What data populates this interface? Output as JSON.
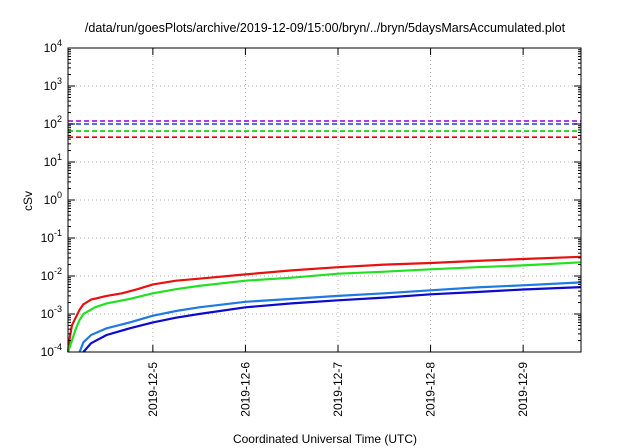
{
  "chart_data": {
    "type": "line",
    "title": "/data/run/goesPlots/archive/2019-12-09/15:00/bryn/../bryn/5daysMarsAccumulated.plot",
    "xlabel": "Coordinated Universal Time (UTC)",
    "ylabel": "cSv",
    "y_scale": "log",
    "ylim": [
      0.0001,
      10000
    ],
    "xlim": [
      "2019-12-04T02:00",
      "2019-12-09T15:00"
    ],
    "x_ticks": [
      "2019-12-5",
      "2019-12-6",
      "2019-12-7",
      "2019-12-8",
      "2019-12-9"
    ],
    "y_ticks": [
      {
        "base": "10",
        "exp": "-4"
      },
      {
        "base": "10",
        "exp": "-3"
      },
      {
        "base": "10",
        "exp": "-2"
      },
      {
        "base": "10",
        "exp": "-1"
      },
      {
        "base": "10",
        "exp": "0"
      },
      {
        "base": "10",
        "exp": "1"
      },
      {
        "base": "10",
        "exp": "2"
      },
      {
        "base": "10",
        "exp": "3"
      },
      {
        "base": "10",
        "exp": "4"
      }
    ],
    "grid": true,
    "thresholds": [
      {
        "value": 120,
        "color": "#9400d3"
      },
      {
        "value": 100,
        "color": "#1f3fd8"
      },
      {
        "value": 65,
        "color": "#00d000"
      },
      {
        "value": 45,
        "color": "#e00000"
      }
    ],
    "series": [
      {
        "color": "#e81010",
        "points": [
          [
            "2019-12-04T02:00",
            0.0001
          ],
          [
            "2019-12-04T02:30",
            0.00025
          ],
          [
            "2019-12-04T03:00",
            0.0005
          ],
          [
            "2019-12-04T04:00",
            0.0008
          ],
          [
            "2019-12-04T05:00",
            0.0013
          ],
          [
            "2019-12-04T06:00",
            0.0018
          ],
          [
            "2019-12-04T08:00",
            0.0024
          ],
          [
            "2019-12-04T12:00",
            0.003
          ],
          [
            "2019-12-04T16:00",
            0.0035
          ],
          [
            "2019-12-04T20:00",
            0.0045
          ],
          [
            "2019-12-05T00:00",
            0.006
          ],
          [
            "2019-12-05T06:00",
            0.0075
          ],
          [
            "2019-12-05T12:00",
            0.0085
          ],
          [
            "2019-12-06T00:00",
            0.011
          ],
          [
            "2019-12-06T12:00",
            0.014
          ],
          [
            "2019-12-07T00:00",
            0.017
          ],
          [
            "2019-12-07T12:00",
            0.02
          ],
          [
            "2019-12-08T00:00",
            0.022
          ],
          [
            "2019-12-08T12:00",
            0.025
          ],
          [
            "2019-12-09T00:00",
            0.028
          ],
          [
            "2019-12-09T15:00",
            0.032
          ]
        ]
      },
      {
        "color": "#22e022",
        "points": [
          [
            "2019-12-04T02:00",
            0.0001
          ],
          [
            "2019-12-04T03:00",
            0.0002
          ],
          [
            "2019-12-04T04:00",
            0.0004
          ],
          [
            "2019-12-04T05:00",
            0.0007
          ],
          [
            "2019-12-04T06:00",
            0.001
          ],
          [
            "2019-12-04T09:00",
            0.0015
          ],
          [
            "2019-12-04T12:00",
            0.0019
          ],
          [
            "2019-12-04T18:00",
            0.0025
          ],
          [
            "2019-12-05T00:00",
            0.0035
          ],
          [
            "2019-12-05T06:00",
            0.0045
          ],
          [
            "2019-12-05T12:00",
            0.0055
          ],
          [
            "2019-12-06T00:00",
            0.0075
          ],
          [
            "2019-12-06T12:00",
            0.009
          ],
          [
            "2019-12-07T00:00",
            0.0115
          ],
          [
            "2019-12-07T12:00",
            0.013
          ],
          [
            "2019-12-08T00:00",
            0.015
          ],
          [
            "2019-12-08T12:00",
            0.017
          ],
          [
            "2019-12-09T00:00",
            0.019
          ],
          [
            "2019-12-09T15:00",
            0.023
          ]
        ]
      },
      {
        "color": "#1f7ae0",
        "points": [
          [
            "2019-12-04T05:00",
            0.0001
          ],
          [
            "2019-12-04T06:00",
            0.00018
          ],
          [
            "2019-12-04T08:00",
            0.00028
          ],
          [
            "2019-12-04T12:00",
            0.00042
          ],
          [
            "2019-12-04T18:00",
            0.0006
          ],
          [
            "2019-12-05T00:00",
            0.0009
          ],
          [
            "2019-12-05T06:00",
            0.0012
          ],
          [
            "2019-12-05T12:00",
            0.0015
          ],
          [
            "2019-12-06T00:00",
            0.0021
          ],
          [
            "2019-12-06T12:00",
            0.0025
          ],
          [
            "2019-12-07T00:00",
            0.003
          ],
          [
            "2019-12-07T12:00",
            0.0035
          ],
          [
            "2019-12-08T00:00",
            0.0042
          ],
          [
            "2019-12-08T12:00",
            0.005
          ],
          [
            "2019-12-09T00:00",
            0.0057
          ],
          [
            "2019-12-09T15:00",
            0.0068
          ]
        ]
      },
      {
        "color": "#0a0ad0",
        "points": [
          [
            "2019-12-04T06:00",
            0.0001
          ],
          [
            "2019-12-04T08:00",
            0.00017
          ],
          [
            "2019-12-04T12:00",
            0.00028
          ],
          [
            "2019-12-04T18:00",
            0.00042
          ],
          [
            "2019-12-05T00:00",
            0.0006
          ],
          [
            "2019-12-05T06:00",
            0.0008
          ],
          [
            "2019-12-05T12:00",
            0.001
          ],
          [
            "2019-12-06T00:00",
            0.0015
          ],
          [
            "2019-12-06T12:00",
            0.0019
          ],
          [
            "2019-12-07T00:00",
            0.0023
          ],
          [
            "2019-12-07T12:00",
            0.0027
          ],
          [
            "2019-12-08T00:00",
            0.0033
          ],
          [
            "2019-12-08T12:00",
            0.0038
          ],
          [
            "2019-12-09T00:00",
            0.0044
          ],
          [
            "2019-12-09T15:00",
            0.0051
          ]
        ]
      }
    ]
  }
}
